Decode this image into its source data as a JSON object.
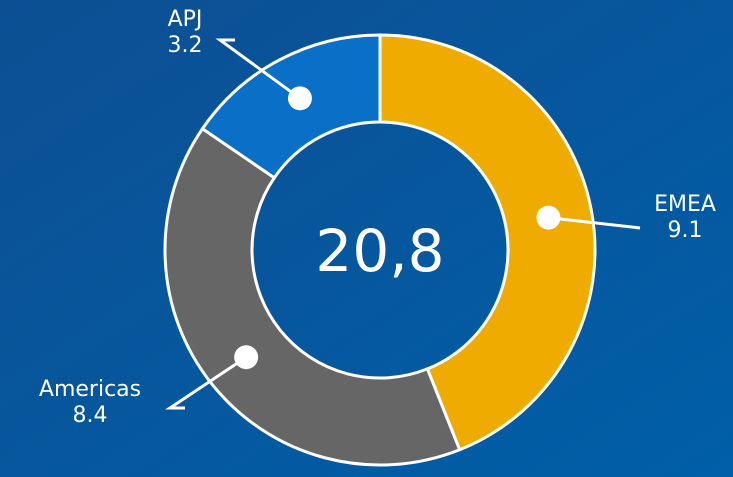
{
  "chart_data": {
    "type": "donut",
    "categories": [
      "EMEA",
      "Americas",
      "APJ"
    ],
    "values": [
      9.1,
      8.4,
      3.2
    ],
    "colors": [
      "#f0ab00",
      "#666666",
      "#0a6fc6"
    ],
    "center_label": "20,8"
  }
}
